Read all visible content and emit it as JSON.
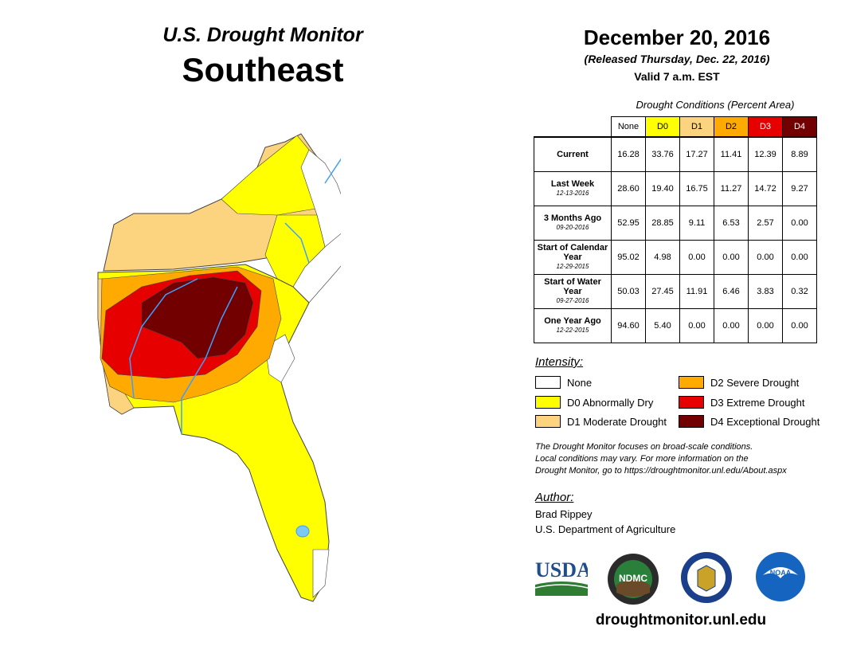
{
  "header": {
    "title_top": "U.S. Drought Monitor",
    "title_main": "Southeast",
    "date": "December 20, 2016",
    "released": "(Released Thursday, Dec. 22, 2016)",
    "valid": "Valid 7 a.m. EST"
  },
  "conditions": {
    "title": "Drought Conditions (Percent Area)",
    "columns": [
      "None",
      "D0",
      "D1",
      "D2",
      "D3",
      "D4"
    ],
    "column_colors": [
      "#ffffff",
      "#ffff00",
      "#fcd37f",
      "#ffaa00",
      "#e60000",
      "#730000"
    ],
    "rows": [
      {
        "label": "Current",
        "sub": "",
        "values": [
          "16.28",
          "33.76",
          "17.27",
          "11.41",
          "12.39",
          "8.89"
        ]
      },
      {
        "label": "Last Week",
        "sub": "12-13-2016",
        "values": [
          "28.60",
          "19.40",
          "16.75",
          "11.27",
          "14.72",
          "9.27"
        ]
      },
      {
        "label": "3 Months Ago",
        "sub": "09-20-2016",
        "values": [
          "52.95",
          "28.85",
          "9.11",
          "6.53",
          "2.57",
          "0.00"
        ]
      },
      {
        "label": "Start of Calendar Year",
        "sub": "12-29-2015",
        "values": [
          "95.02",
          "4.98",
          "0.00",
          "0.00",
          "0.00",
          "0.00"
        ]
      },
      {
        "label": "Start of Water Year",
        "sub": "09-27-2016",
        "values": [
          "50.03",
          "27.45",
          "11.91",
          "6.46",
          "3.83",
          "0.32"
        ]
      },
      {
        "label": "One Year Ago",
        "sub": "12-22-2015",
        "values": [
          "94.60",
          "5.40",
          "0.00",
          "0.00",
          "0.00",
          "0.00"
        ]
      }
    ]
  },
  "legend": {
    "title": "Intensity:",
    "items": [
      {
        "label": "None",
        "color": "#ffffff"
      },
      {
        "label": "D0 Abnormally Dry",
        "color": "#ffff00"
      },
      {
        "label": "D1 Moderate Drought",
        "color": "#fcd37f"
      },
      {
        "label": "D2 Severe Drought",
        "color": "#ffaa00"
      },
      {
        "label": "D3 Extreme Drought",
        "color": "#e60000"
      },
      {
        "label": "D4 Exceptional Drought",
        "color": "#730000"
      }
    ]
  },
  "note": {
    "line1": "The Drought Monitor focuses on broad-scale conditions.",
    "line2": "Local conditions may vary. For more information on the",
    "line3": "Drought Monitor, go to https://droughtmonitor.unl.edu/About.aspx"
  },
  "author": {
    "label": "Author:",
    "name": "Brad Rippey",
    "org": "U.S. Department of Agriculture"
  },
  "logos": {
    "usda": "USDA",
    "ndmc": "NDMC",
    "noaa": "NOAA"
  },
  "footer": {
    "url": "droughtmonitor.unl.edu"
  }
}
